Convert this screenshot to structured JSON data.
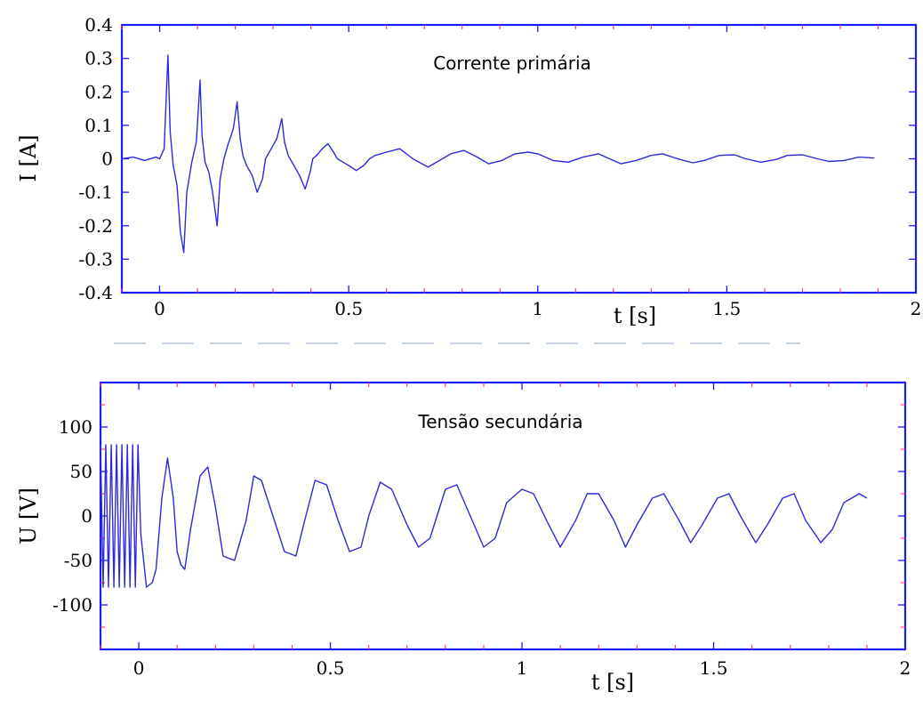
{
  "chart_data": [
    {
      "type": "line",
      "title": "Corrente primária",
      "xlabel": "t [s]",
      "ylabel": "I [A]",
      "xlim": [
        -0.1,
        2.0
      ],
      "ylim": [
        -0.4,
        0.4
      ],
      "xticks": [
        "0",
        "0.5",
        "1",
        "1.5",
        "2"
      ],
      "yticks": [
        "0.4",
        "0.3",
        "0.2",
        "0.1",
        "0",
        "-0.1",
        "-0.2",
        "-0.3",
        "-0.4"
      ],
      "grid": false,
      "color": "#2b2bd9",
      "series": [
        {
          "x": [
            -0.1,
            -0.07,
            -0.04,
            -0.01,
            0.0,
            0.012,
            0.022,
            0.028,
            0.036,
            0.046,
            0.055,
            0.064,
            0.072,
            0.085,
            0.097,
            0.107,
            0.112,
            0.12,
            0.13,
            0.14,
            0.152,
            0.16,
            0.17,
            0.18,
            0.195,
            0.205,
            0.213,
            0.22,
            0.23,
            0.245,
            0.258,
            0.272,
            0.28,
            0.295,
            0.31,
            0.323,
            0.33,
            0.34,
            0.355,
            0.37,
            0.385,
            0.398,
            0.405,
            0.415,
            0.43,
            0.445,
            0.46,
            0.47,
            0.485,
            0.5,
            0.52,
            0.54,
            0.555,
            0.57,
            0.6,
            0.635,
            0.67,
            0.71,
            0.74,
            0.77,
            0.805,
            0.84,
            0.87,
            0.905,
            0.94,
            0.975,
            1.0,
            1.04,
            1.08,
            1.12,
            1.16,
            1.19,
            1.22,
            1.26,
            1.3,
            1.33,
            1.37,
            1.41,
            1.44,
            1.48,
            1.52,
            1.55,
            1.59,
            1.63,
            1.66,
            1.7,
            1.74,
            1.77,
            1.81,
            1.85,
            1.89
          ],
          "y": [
            0.0,
            0.005,
            -0.005,
            0.005,
            0.0,
            0.03,
            0.31,
            0.08,
            -0.02,
            -0.08,
            -0.22,
            -0.28,
            -0.1,
            -0.01,
            0.05,
            0.235,
            0.07,
            -0.01,
            -0.04,
            -0.1,
            -0.2,
            -0.06,
            0.0,
            0.04,
            0.09,
            0.17,
            0.06,
            0.01,
            -0.02,
            -0.05,
            -0.1,
            -0.06,
            0.0,
            0.03,
            0.06,
            0.12,
            0.05,
            0.01,
            -0.02,
            -0.05,
            -0.09,
            -0.04,
            0.0,
            0.01,
            0.03,
            0.045,
            0.02,
            0.0,
            -0.01,
            -0.02,
            -0.035,
            -0.02,
            0.0,
            0.01,
            0.02,
            0.03,
            0.0,
            -0.025,
            -0.005,
            0.015,
            0.025,
            0.005,
            -0.015,
            -0.005,
            0.015,
            0.02,
            0.015,
            -0.005,
            -0.01,
            0.005,
            0.015,
            0.0,
            -0.015,
            -0.005,
            0.01,
            0.015,
            0.0,
            -0.012,
            -0.005,
            0.01,
            0.012,
            0.0,
            -0.01,
            -0.002,
            0.01,
            0.012,
            0.0,
            -0.008,
            -0.005,
            0.005,
            0.002
          ]
        }
      ]
    },
    {
      "type": "line",
      "title": "Tensão secundária",
      "xlabel": "t [s]",
      "ylabel": "U [V]",
      "xlim": [
        -0.1,
        2.0
      ],
      "ylim": [
        -150,
        150
      ],
      "xticks": [
        "0",
        "0.5",
        "1",
        "1.5",
        "2"
      ],
      "yticks": [
        "100",
        "50",
        "0",
        "-50",
        "-100"
      ],
      "grid": false,
      "color": "#2b2bd9",
      "series": [
        {
          "x": [
            -0.1,
            -0.093,
            -0.086,
            -0.079,
            -0.072,
            -0.065,
            -0.058,
            -0.051,
            -0.044,
            -0.037,
            -0.03,
            -0.023,
            -0.016,
            -0.009,
            -0.002,
            0.005,
            0.02,
            0.035,
            0.045,
            0.06,
            0.075,
            0.09,
            0.1,
            0.11,
            0.12,
            0.135,
            0.16,
            0.18,
            0.2,
            0.22,
            0.25,
            0.28,
            0.3,
            0.32,
            0.35,
            0.38,
            0.41,
            0.43,
            0.46,
            0.49,
            0.52,
            0.55,
            0.58,
            0.6,
            0.63,
            0.66,
            0.7,
            0.73,
            0.76,
            0.8,
            0.83,
            0.86,
            0.9,
            0.93,
            0.96,
            1.0,
            1.03,
            1.07,
            1.1,
            1.14,
            1.17,
            1.2,
            1.24,
            1.27,
            1.3,
            1.34,
            1.37,
            1.41,
            1.44,
            1.47,
            1.51,
            1.54,
            1.57,
            1.61,
            1.64,
            1.68,
            1.71,
            1.74,
            1.78,
            1.81,
            1.84,
            1.88,
            1.9
          ],
          "y": [
            80,
            -80,
            80,
            -80,
            80,
            -80,
            80,
            -80,
            80,
            -80,
            80,
            -80,
            80,
            -80,
            80,
            -20,
            -80,
            -75,
            -60,
            20,
            65,
            20,
            -40,
            -55,
            -60,
            -15,
            45,
            55,
            10,
            -45,
            -50,
            -5,
            45,
            40,
            0,
            -40,
            -45,
            -10,
            40,
            35,
            -5,
            -40,
            -35,
            0,
            38,
            30,
            -10,
            -35,
            -25,
            30,
            35,
            5,
            -35,
            -25,
            15,
            30,
            25,
            -10,
            -35,
            -5,
            25,
            25,
            -5,
            -35,
            -10,
            20,
            25,
            -5,
            -30,
            -10,
            20,
            25,
            0,
            -30,
            -10,
            20,
            25,
            -5,
            -30,
            -15,
            15,
            25,
            20
          ]
        }
      ]
    }
  ]
}
